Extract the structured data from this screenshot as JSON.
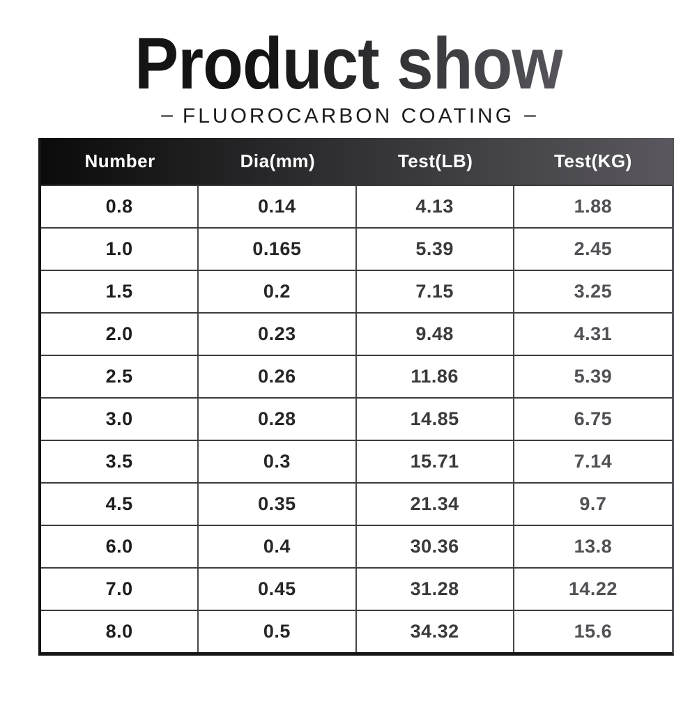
{
  "title": "Product show",
  "subtitle": {
    "dash_left": "–",
    "text": "FLUOROCARBON COATING",
    "dash_right": "–"
  },
  "table": {
    "headers": [
      "Number",
      "Dia(mm)",
      "Test(LB)",
      "Test(KG)"
    ],
    "rows": [
      [
        "0.8",
        "0.14",
        "4.13",
        "1.88"
      ],
      [
        "1.0",
        "0.165",
        "5.39",
        "2.45"
      ],
      [
        "1.5",
        "0.2",
        "7.15",
        "3.25"
      ],
      [
        "2.0",
        "0.23",
        "9.48",
        "4.31"
      ],
      [
        "2.5",
        "0.26",
        "11.86",
        "5.39"
      ],
      [
        "3.0",
        "0.28",
        "14.85",
        "6.75"
      ],
      [
        "3.5",
        "0.3",
        "15.71",
        "7.14"
      ],
      [
        "4.5",
        "0.35",
        "21.34",
        "9.7"
      ],
      [
        "6.0",
        "0.4",
        "30.36",
        "13.8"
      ],
      [
        "7.0",
        "0.45",
        "31.28",
        "14.22"
      ],
      [
        "8.0",
        "0.5",
        "34.32",
        "15.6"
      ]
    ]
  },
  "colors": {
    "title-grad-start": "#141414",
    "title-grad-end": "#57555b",
    "subtitle-text": "#1c1c1c",
    "header-grad-start": "#0b0b0b",
    "header-grad-end": "#5a585e",
    "header-text": "#ffffff",
    "grid-line": "#3c3c3c",
    "grid-line-v": "#47474a",
    "border-strong": "#151515",
    "border-right": "#55555a",
    "col1-text": "#1e1e1e",
    "col2-text": "#262628",
    "col3-text": "#3a3a3d",
    "col4-text": "#515155"
  }
}
